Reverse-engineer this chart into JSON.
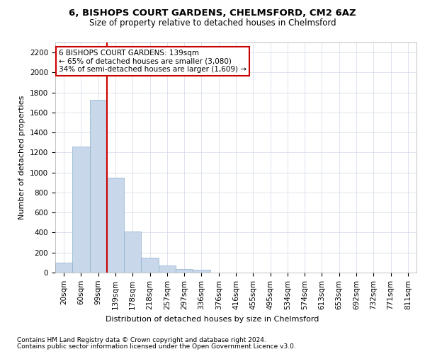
{
  "title_line1": "6, BISHOPS COURT GARDENS, CHELMSFORD, CM2 6AZ",
  "title_line2": "Size of property relative to detached houses in Chelmsford",
  "xlabel": "Distribution of detached houses by size in Chelmsford",
  "ylabel": "Number of detached properties",
  "footnote1": "Contains HM Land Registry data © Crown copyright and database right 2024.",
  "footnote2": "Contains public sector information licensed under the Open Government Licence v3.0.",
  "annotation_line1": "6 BISHOPS COURT GARDENS: 139sqm",
  "annotation_line2": "← 65% of detached houses are smaller (3,080)",
  "annotation_line3": "34% of semi-detached houses are larger (1,609) →",
  "bar_color": "#c8d8ea",
  "bar_edgecolor": "#8ab0cc",
  "vline_color": "#cc0000",
  "grid_color": "#d0d8e8",
  "categories": [
    "20sqm",
    "60sqm",
    "99sqm",
    "139sqm",
    "178sqm",
    "218sqm",
    "257sqm",
    "297sqm",
    "336sqm",
    "376sqm",
    "416sqm",
    "455sqm",
    "495sqm",
    "534sqm",
    "574sqm",
    "613sqm",
    "653sqm",
    "692sqm",
    "732sqm",
    "771sqm",
    "811sqm"
  ],
  "values": [
    100,
    1260,
    1730,
    950,
    410,
    150,
    70,
    35,
    25,
    0,
    0,
    0,
    0,
    0,
    0,
    0,
    0,
    0,
    0,
    0,
    0
  ],
  "ylim": [
    0,
    2300
  ],
  "yticks": [
    0,
    200,
    400,
    600,
    800,
    1000,
    1200,
    1400,
    1600,
    1800,
    2000,
    2200
  ],
  "vline_x": 2.5,
  "background_color": "#ffffff",
  "title1_fontsize": 9.5,
  "title2_fontsize": 8.5,
  "xlabel_fontsize": 8,
  "ylabel_fontsize": 8,
  "tick_fontsize": 7.5,
  "annot_fontsize": 7.5,
  "footnote_fontsize": 6.5
}
